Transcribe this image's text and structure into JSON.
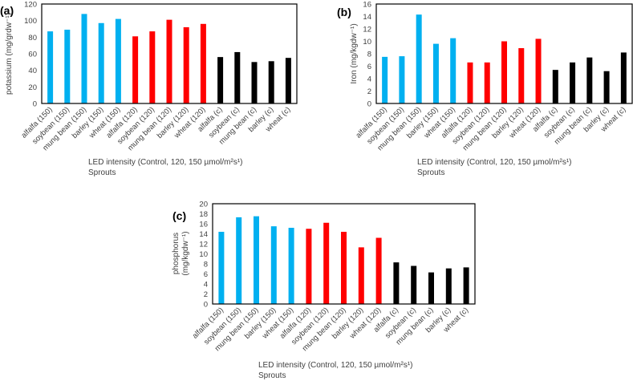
{
  "colors": {
    "150": "#00b0f0",
    "120": "#ff0000",
    "c": "#000000"
  },
  "chart_data": [
    {
      "type": "bar",
      "panel": "(a)",
      "ylabel": "potassium (mg/grdw⁻¹)",
      "xlabel": "LED intensity (Control, 120, 150 µmol/m²s¹)",
      "xlabel2": "Sprouts",
      "ylim": [
        0,
        120
      ],
      "yticks": [
        0,
        20,
        40,
        60,
        80,
        100,
        120
      ],
      "categories": [
        "alfalfa (150)",
        "soybean (150)",
        "mung bean (150)",
        "barley (150)",
        "wheat (150)",
        "alfalfa (120)",
        "soybean (120)",
        "mung bean (120)",
        "barley (120)",
        "wheat (120)",
        "alfalfa (c)",
        "soybean (c)",
        "mung bean (c)",
        "barley (c)",
        "wheat (c)"
      ],
      "groups": [
        "150",
        "150",
        "150",
        "150",
        "150",
        "120",
        "120",
        "120",
        "120",
        "120",
        "c",
        "c",
        "c",
        "c",
        "c"
      ],
      "values": [
        87,
        89,
        108,
        97,
        102,
        81,
        87,
        101,
        92,
        96,
        56,
        62,
        50,
        51,
        55
      ]
    },
    {
      "type": "bar",
      "panel": "(b)",
      "ylabel": "Iron (mg/kgdw⁻¹)",
      "xlabel": "LED intensity (Control, 120, 150 µmol/m²s¹)",
      "xlabel2": "Sprouts",
      "ylim": [
        0,
        16
      ],
      "yticks": [
        0,
        2,
        4,
        6,
        8,
        10,
        12,
        14,
        16
      ],
      "categories": [
        "alfalfa (150)",
        "soybean (150)",
        "mung bean (150)",
        "barley (150)",
        "wheat (150)",
        "alfalfa (120)",
        "soybean (120)",
        "mung bean (120)",
        "barley (120)",
        "wheat (120)",
        "alfalfa (c)",
        "soybean (c)",
        "mung bean (c)",
        "barley (c)",
        "wheat (c)"
      ],
      "groups": [
        "150",
        "150",
        "150",
        "150",
        "150",
        "120",
        "120",
        "120",
        "120",
        "120",
        "c",
        "c",
        "c",
        "c",
        "c"
      ],
      "values": [
        7.5,
        7.6,
        14.3,
        9.6,
        10.5,
        6.6,
        6.6,
        10.0,
        8.9,
        10.4,
        5.4,
        6.6,
        7.4,
        5.2,
        8.2
      ]
    },
    {
      "type": "bar",
      "panel": "(c)",
      "ylabel": "phosphorus",
      "ylabel2": "(mg/kgdw⁻¹)",
      "xlabel": "LED intensity (Control, 120, 150 µmol/m²s¹)",
      "xlabel2": "Sprouts",
      "ylim": [
        0,
        20
      ],
      "yticks": [
        0,
        2,
        4,
        6,
        8,
        10,
        12,
        14,
        16,
        18,
        20
      ],
      "categories": [
        "alfalfa (150)",
        "soybean (150)",
        "mung bean (150)",
        "barley (150)",
        "wheat (150)",
        "alfalfa (120)",
        "soybean (120)",
        "mung bean (120)",
        "barley (120)",
        "wheat (120)",
        "alfalfa (c)",
        "soybean (c)",
        "mung bean (c)",
        "barley (c)",
        "wheat (c)"
      ],
      "groups": [
        "150",
        "150",
        "150",
        "150",
        "150",
        "120",
        "120",
        "120",
        "120",
        "120",
        "c",
        "c",
        "c",
        "c",
        "c"
      ],
      "values": [
        14.4,
        17.3,
        17.5,
        15.5,
        15.2,
        15.0,
        16.2,
        14.4,
        11.3,
        13.2,
        8.3,
        7.6,
        6.3,
        7.1,
        7.3
      ]
    }
  ]
}
